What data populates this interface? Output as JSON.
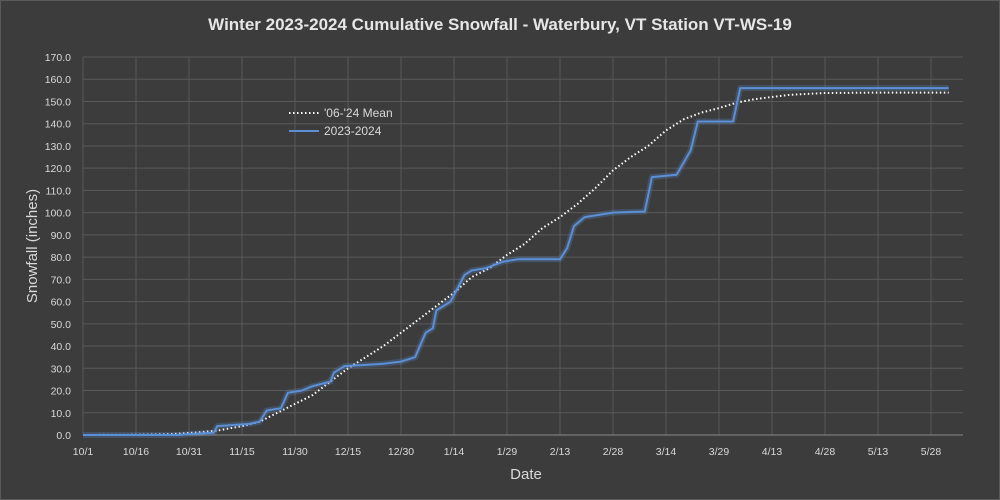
{
  "chart_data": {
    "type": "line",
    "title": "Winter 2023-2024 Cumulative Snowfall - Waterbury, VT Station VT-WS-19",
    "xlabel": "Date",
    "ylabel": "Snowfall (inches)",
    "ylim": [
      0,
      170
    ],
    "y_ticks": [
      "0.0",
      "10.0",
      "20.0",
      "30.0",
      "40.0",
      "50.0",
      "60.0",
      "70.0",
      "80.0",
      "90.0",
      "100.0",
      "110.0",
      "120.0",
      "130.0",
      "140.0",
      "150.0",
      "160.0",
      "170.0"
    ],
    "x_ticks": [
      "10/1",
      "10/16",
      "10/31",
      "11/15",
      "11/30",
      "12/15",
      "12/30",
      "1/14",
      "1/29",
      "2/13",
      "2/28",
      "3/14",
      "3/29",
      "4/13",
      "4/28",
      "5/13",
      "5/28"
    ],
    "x_axis_start": "2023-10-01",
    "grid": true,
    "legend_position": "upper-left-inside",
    "colors": {
      "mean": "#ffffff",
      "current": "#5b8fd6",
      "grid": "#595959",
      "background": "#3c3c3c"
    },
    "series": [
      {
        "name": "'06-'24 Mean",
        "style": "dotted",
        "points": [
          [
            "2023-10-01",
            0
          ],
          [
            "2023-10-15",
            0.1
          ],
          [
            "2023-10-25",
            0.3
          ],
          [
            "2023-11-01",
            1
          ],
          [
            "2023-11-08",
            2
          ],
          [
            "2023-11-15",
            4
          ],
          [
            "2023-11-20",
            6
          ],
          [
            "2023-11-25",
            10
          ],
          [
            "2023-11-30",
            14
          ],
          [
            "2023-12-05",
            18
          ],
          [
            "2023-12-10",
            24
          ],
          [
            "2023-12-15",
            30
          ],
          [
            "2023-12-20",
            35
          ],
          [
            "2023-12-25",
            40
          ],
          [
            "2023-12-30",
            46
          ],
          [
            "2024-01-04",
            52
          ],
          [
            "2024-01-09",
            58
          ],
          [
            "2024-01-14",
            64
          ],
          [
            "2024-01-19",
            71
          ],
          [
            "2024-01-24",
            75
          ],
          [
            "2024-01-29",
            81
          ],
          [
            "2024-02-03",
            86
          ],
          [
            "2024-02-08",
            93
          ],
          [
            "2024-02-13",
            98
          ],
          [
            "2024-02-18",
            104
          ],
          [
            "2024-02-23",
            111
          ],
          [
            "2024-02-28",
            119
          ],
          [
            "2024-03-04",
            125
          ],
          [
            "2024-03-09",
            130
          ],
          [
            "2024-03-14",
            137
          ],
          [
            "2024-03-19",
            142
          ],
          [
            "2024-03-24",
            145
          ],
          [
            "2024-03-29",
            147
          ],
          [
            "2024-04-03",
            149.5
          ],
          [
            "2024-04-08",
            151
          ],
          [
            "2024-04-13",
            152
          ],
          [
            "2024-04-18",
            153
          ],
          [
            "2024-04-28",
            153.8
          ],
          [
            "2024-05-13",
            154
          ],
          [
            "2024-06-02",
            154
          ]
        ]
      },
      {
        "name": "2023-2024",
        "style": "solid",
        "points": [
          [
            "2023-10-01",
            0
          ],
          [
            "2023-10-28",
            0
          ],
          [
            "2023-11-01",
            0.5
          ],
          [
            "2023-11-07",
            1
          ],
          [
            "2023-11-08",
            4
          ],
          [
            "2023-11-17",
            5
          ],
          [
            "2023-11-20",
            6
          ],
          [
            "2023-11-22",
            11
          ],
          [
            "2023-11-26",
            12
          ],
          [
            "2023-11-28",
            19
          ],
          [
            "2023-12-02",
            20
          ],
          [
            "2023-12-05",
            22
          ],
          [
            "2023-12-10",
            24
          ],
          [
            "2023-12-11",
            28
          ],
          [
            "2023-12-14",
            31
          ],
          [
            "2023-12-25",
            32
          ],
          [
            "2023-12-30",
            33
          ],
          [
            "2024-01-03",
            35
          ],
          [
            "2024-01-06",
            46
          ],
          [
            "2024-01-08",
            48
          ],
          [
            "2024-01-09",
            56
          ],
          [
            "2024-01-13",
            60
          ],
          [
            "2024-01-17",
            72
          ],
          [
            "2024-01-19",
            74
          ],
          [
            "2024-01-23",
            75
          ],
          [
            "2024-01-28",
            78
          ],
          [
            "2024-02-01",
            79
          ],
          [
            "2024-02-13",
            79
          ],
          [
            "2024-02-15",
            84
          ],
          [
            "2024-02-17",
            94
          ],
          [
            "2024-02-20",
            98
          ],
          [
            "2024-02-28",
            100
          ],
          [
            "2024-03-08",
            100.5
          ],
          [
            "2024-03-10",
            116
          ],
          [
            "2024-03-17",
            117
          ],
          [
            "2024-03-21",
            128
          ],
          [
            "2024-03-23",
            141
          ],
          [
            "2024-04-02",
            141
          ],
          [
            "2024-04-04",
            156
          ],
          [
            "2024-04-21",
            156
          ],
          [
            "2024-06-02",
            156
          ]
        ]
      }
    ]
  }
}
